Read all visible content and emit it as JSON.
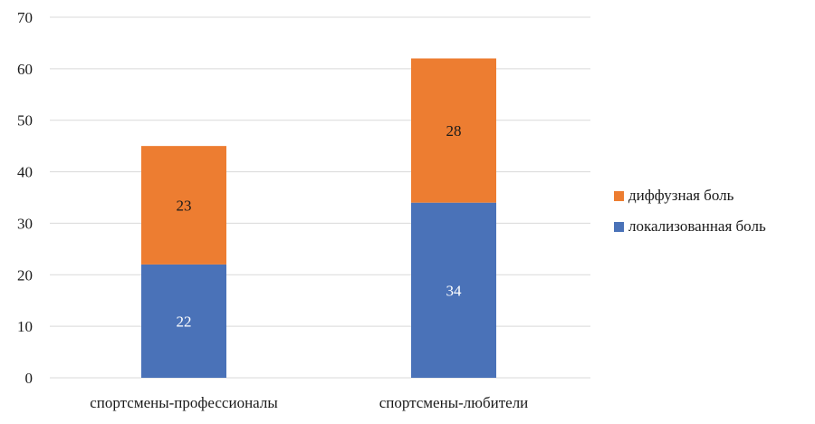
{
  "chart_data": {
    "type": "bar",
    "stacked": true,
    "categories": [
      "спортсмены-профессионалы",
      "спортсмены-любители"
    ],
    "series": [
      {
        "name": "локализованная боль",
        "values": [
          22,
          34
        ],
        "color": "#4a72b8",
        "label_color": "#ffffff"
      },
      {
        "name": "диффузная боль",
        "values": [
          23,
          28
        ],
        "color": "#ed7d31",
        "label_color": "#1a1a1a"
      }
    ],
    "legend_order": [
      1,
      0
    ],
    "ylim": [
      0,
      70
    ],
    "yticks": [
      0,
      10,
      20,
      30,
      40,
      50,
      60,
      70
    ],
    "grid": true,
    "legend": "right",
    "title": "",
    "xlabel": "",
    "ylabel": ""
  }
}
